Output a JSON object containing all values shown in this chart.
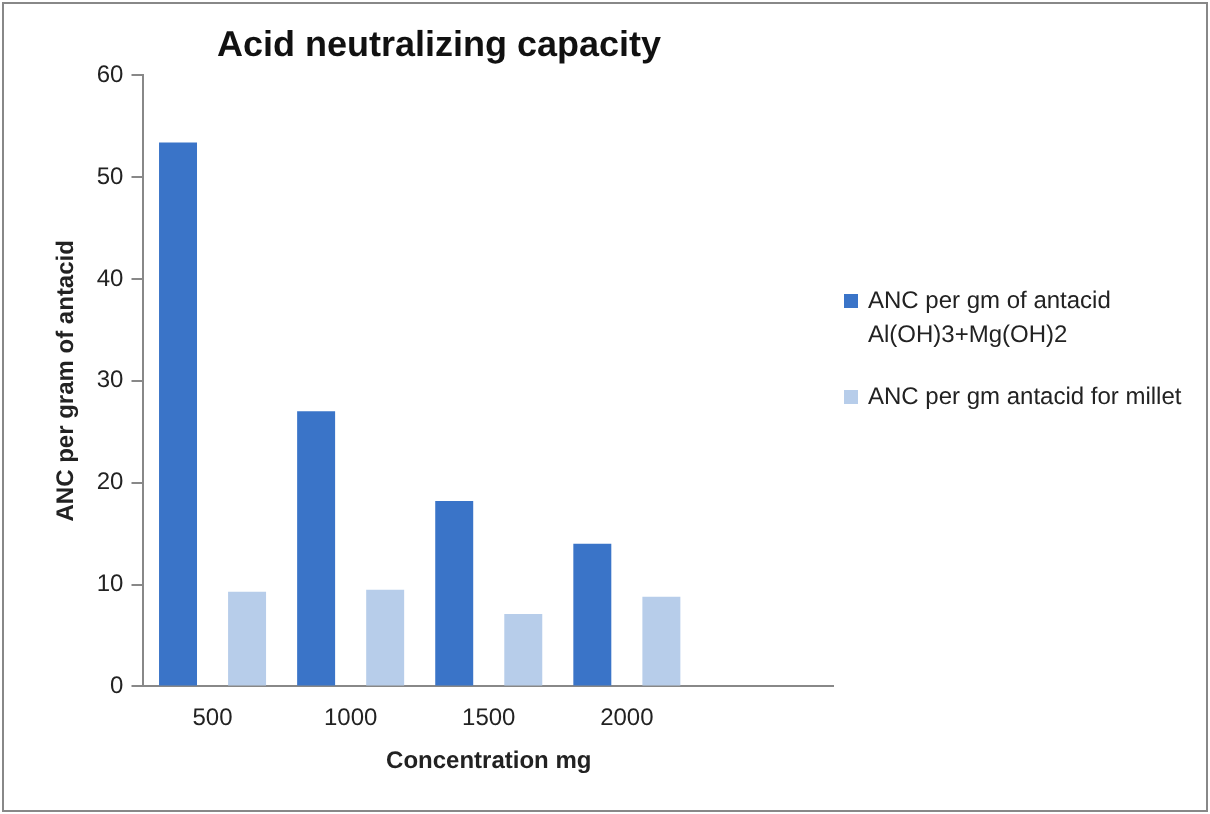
{
  "chart_data": {
    "type": "bar",
    "title": "Acid neutralizing capacity",
    "xlabel": "Concentration mg",
    "ylabel": "ANC per gram of antacid",
    "categories": [
      "500",
      "1000",
      "1500",
      "2000",
      null
    ],
    "series": [
      {
        "name": "ANC per gm of antacid Al(OH)3+Mg(OH)2",
        "color": "#3a74c8",
        "values": [
          53.4,
          27.0,
          18.2,
          14.0,
          null
        ]
      },
      {
        "name": "ANC per gm antacid for millet",
        "color": "#b7cdea",
        "values": [
          9.3,
          9.5,
          7.1,
          8.8,
          null
        ]
      }
    ],
    "ylim": [
      0,
      60
    ],
    "yticks": [
      0,
      10,
      20,
      30,
      40,
      50,
      60
    ],
    "grid": false,
    "legend": "right"
  }
}
